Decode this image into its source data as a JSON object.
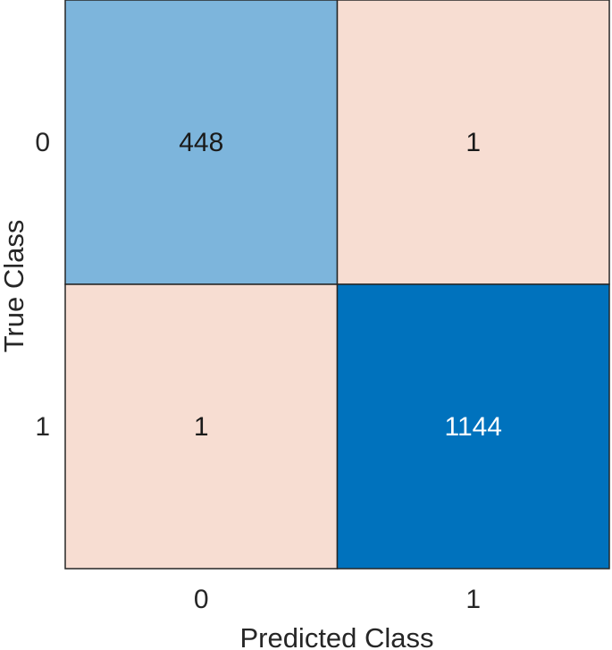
{
  "chart_data": {
    "type": "heatmap",
    "title": "",
    "xlabel": "Predicted Class",
    "ylabel": "True Class",
    "x_categories": [
      "0",
      "1"
    ],
    "y_categories": [
      "0",
      "1"
    ],
    "values": [
      [
        448,
        1
      ],
      [
        1,
        1144
      ]
    ],
    "colors": {
      "diagonal_low": "#7db5dc",
      "diagonal_high": "#0072bd",
      "off_diagonal": "#f7ddd2",
      "cell_border": "#262626",
      "text_dark": "#1a1a1a",
      "text_light": "#ffffff"
    },
    "grid": true,
    "legend": "none"
  }
}
